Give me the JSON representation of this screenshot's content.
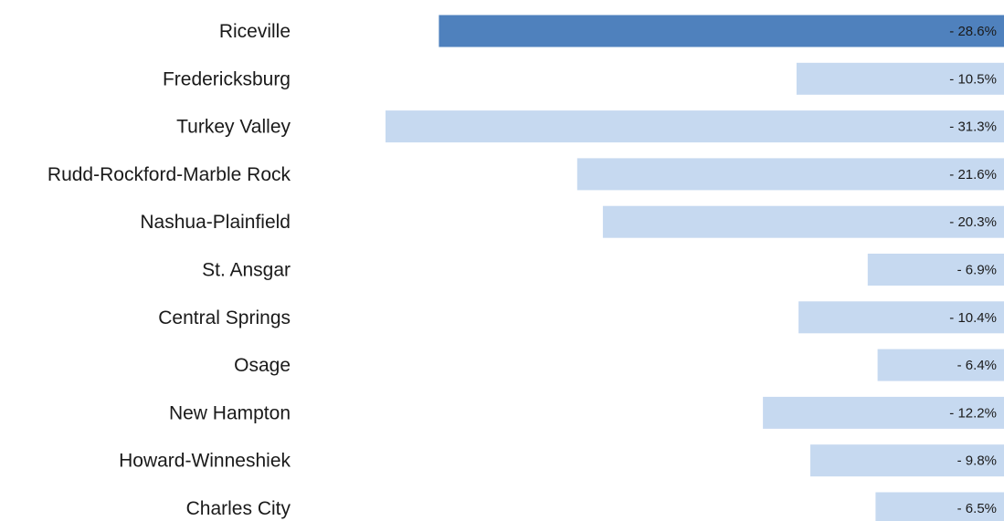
{
  "chart_data": {
    "type": "bar",
    "orientation": "horizontal",
    "categories": [
      "Riceville",
      "Fredericksburg",
      "Turkey Valley",
      "Rudd-Rockford-Marble Rock",
      "Nashua-Plainfield",
      "St. Ansgar",
      "Central Springs",
      "Osage",
      "New Hampton",
      "Howard-Winneshiek",
      "Charles City"
    ],
    "values": [
      -28.6,
      -10.5,
      -31.3,
      -21.6,
      -20.3,
      -6.9,
      -10.4,
      -6.4,
      -12.2,
      -9.8,
      -6.5
    ],
    "value_labels": [
      "- 28.6%",
      "- 10.5%",
      "- 31.3%",
      "- 21.6%",
      "- 20.3%",
      "- 6.9%",
      "- 10.4%",
      "- 6.4%",
      "- 12.2%",
      "- 9.8%",
      "- 6.5%"
    ],
    "highlight_category": "Riceville",
    "colors": {
      "highlight": "#4f81bd",
      "default": "#c6d9f0"
    },
    "xlim": [
      -31.3,
      0
    ],
    "title": "",
    "xlabel": "",
    "ylabel": "",
    "grid": false,
    "legend": "none"
  }
}
